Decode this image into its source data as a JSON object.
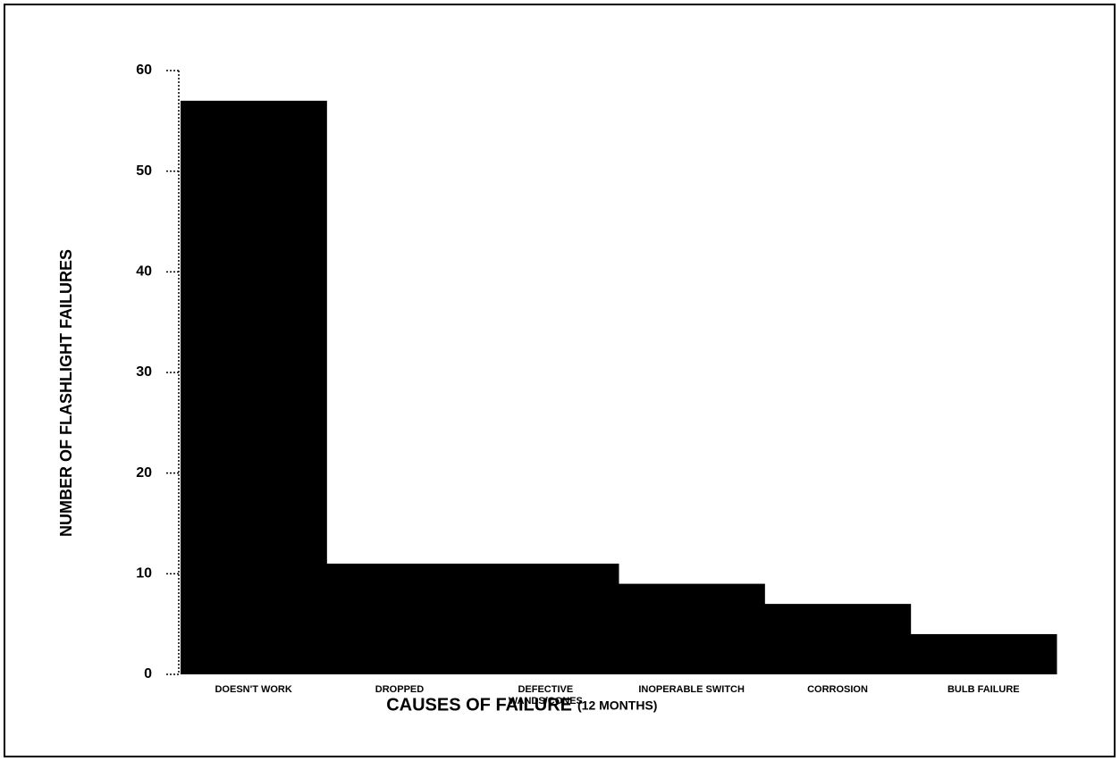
{
  "chart_data": {
    "type": "bar",
    "ylabel": "NUMBER OF FLASHLIGHT FAILURES",
    "xlabel": "CAUSES OF FAILURE",
    "xlabel_note": "(12 MONTHS)",
    "categories": [
      [
        "DOESN'T WORK"
      ],
      [
        "DROPPED"
      ],
      [
        "DEFECTIVE",
        "WANDS/CONES"
      ],
      [
        "INOPERABLE SWITCH"
      ],
      [
        "CORROSION"
      ],
      [
        "BULB FAILURE"
      ]
    ],
    "values": [
      57,
      11,
      11,
      9,
      7,
      4
    ],
    "color": "#000000",
    "ylim": [
      0,
      60
    ],
    "yticks": [
      0,
      10,
      20,
      30,
      40,
      50,
      60
    ],
    "grid": false
  }
}
